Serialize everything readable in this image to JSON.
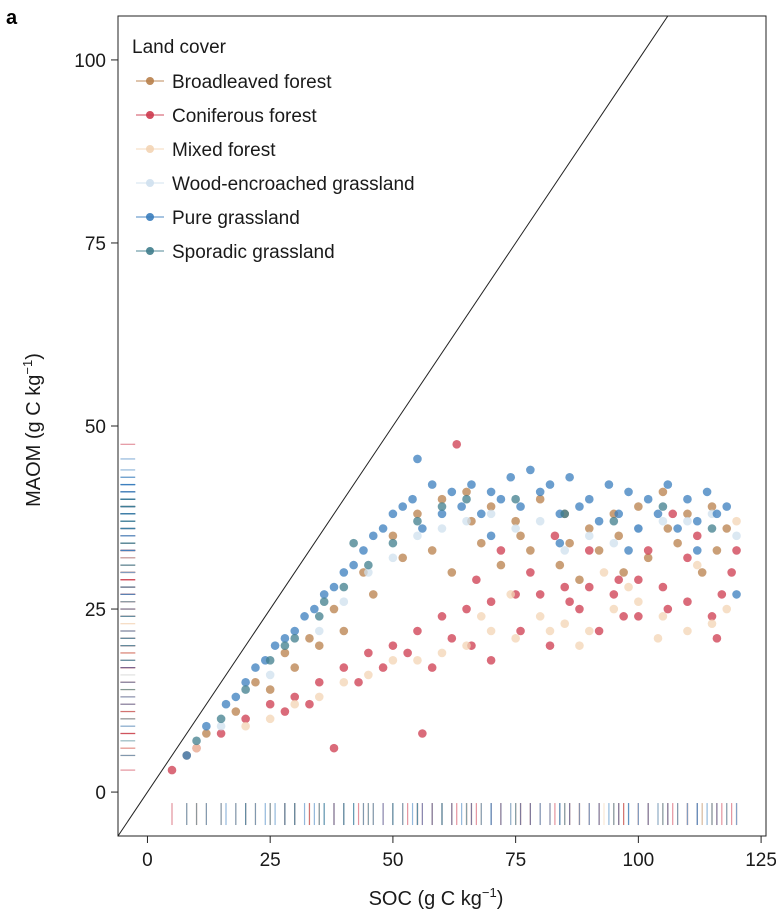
{
  "panel_label": "a",
  "chart_data": {
    "type": "scatter",
    "title": "",
    "xlabel": "SOC (g C kg",
    "xlabel_sup": "−1",
    "xlabel_end": ")",
    "ylabel": "MAOM (g C kg",
    "ylabel_sup": "−1",
    "ylabel_end": ")",
    "xlim": [
      -6,
      126
    ],
    "ylim": [
      -6,
      106
    ],
    "x_ticks": [
      "0",
      "25",
      "50",
      "75",
      "100",
      "125"
    ],
    "y_ticks": [
      "0",
      "25",
      "50",
      "75",
      "100"
    ],
    "grid": false,
    "reference_line": "1:1",
    "marginal_rugs": true,
    "legend": {
      "title": "Land cover",
      "placement": "top-left"
    },
    "series": [
      {
        "name": "Broadleaved forest",
        "color": "#b87f4a",
        "points": [
          [
            8,
            5
          ],
          [
            12,
            8
          ],
          [
            18,
            11
          ],
          [
            22,
            15
          ],
          [
            28,
            19
          ],
          [
            33,
            21
          ],
          [
            38,
            25
          ],
          [
            44,
            30
          ],
          [
            50,
            35
          ],
          [
            55,
            38
          ],
          [
            60,
            40
          ],
          [
            65,
            41
          ],
          [
            70,
            39
          ],
          [
            75,
            37
          ],
          [
            80,
            40
          ],
          [
            85,
            38
          ],
          [
            90,
            36
          ],
          [
            95,
            38
          ],
          [
            100,
            39
          ],
          [
            105,
            41
          ],
          [
            110,
            38
          ],
          [
            115,
            39
          ],
          [
            118,
            36
          ],
          [
            58,
            33
          ],
          [
            62,
            30
          ],
          [
            68,
            34
          ],
          [
            72,
            31
          ],
          [
            78,
            33
          ],
          [
            84,
            31
          ],
          [
            88,
            29
          ],
          [
            92,
            33
          ],
          [
            97,
            30
          ],
          [
            102,
            32
          ],
          [
            108,
            34
          ],
          [
            113,
            30
          ],
          [
            46,
            27
          ],
          [
            40,
            22
          ],
          [
            35,
            20
          ],
          [
            30,
            17
          ],
          [
            25,
            14
          ],
          [
            52,
            32
          ],
          [
            66,
            37
          ],
          [
            76,
            35
          ],
          [
            86,
            34
          ],
          [
            96,
            35
          ],
          [
            106,
            36
          ],
          [
            116,
            33
          ]
        ]
      },
      {
        "name": "Coniferous forest",
        "color": "#cd3a4e",
        "points": [
          [
            5,
            3
          ],
          [
            10,
            6
          ],
          [
            15,
            8
          ],
          [
            20,
            10
          ],
          [
            25,
            12
          ],
          [
            30,
            13
          ],
          [
            35,
            15
          ],
          [
            40,
            17
          ],
          [
            45,
            19
          ],
          [
            50,
            20
          ],
          [
            55,
            22
          ],
          [
            60,
            24
          ],
          [
            65,
            25
          ],
          [
            70,
            26
          ],
          [
            75,
            27
          ],
          [
            80,
            27
          ],
          [
            85,
            28
          ],
          [
            90,
            28
          ],
          [
            95,
            27
          ],
          [
            100,
            29
          ],
          [
            105,
            28
          ],
          [
            110,
            26
          ],
          [
            115,
            24
          ],
          [
            120,
            33
          ],
          [
            38,
            6
          ],
          [
            56,
            8
          ],
          [
            63,
            47.5
          ],
          [
            58,
            17
          ],
          [
            62,
            21
          ],
          [
            67,
            29
          ],
          [
            72,
            33
          ],
          [
            78,
            30
          ],
          [
            83,
            35
          ],
          [
            88,
            25
          ],
          [
            92,
            22
          ],
          [
            97,
            24
          ],
          [
            102,
            33
          ],
          [
            107,
            38
          ],
          [
            112,
            35
          ],
          [
            117,
            27
          ],
          [
            70,
            18
          ],
          [
            76,
            22
          ],
          [
            82,
            20
          ],
          [
            90,
            33
          ],
          [
            100,
            24
          ],
          [
            110,
            32
          ],
          [
            119,
            30
          ],
          [
            28,
            11
          ],
          [
            33,
            12
          ],
          [
            43,
            15
          ],
          [
            48,
            17
          ],
          [
            53,
            19
          ],
          [
            66,
            20
          ],
          [
            86,
            26
          ],
          [
            96,
            29
          ],
          [
            106,
            25
          ],
          [
            116,
            21
          ]
        ]
      },
      {
        "name": "Mixed forest",
        "color": "#f3d4b4",
        "points": [
          [
            10,
            6
          ],
          [
            20,
            9
          ],
          [
            30,
            12
          ],
          [
            40,
            15
          ],
          [
            50,
            18
          ],
          [
            55,
            18
          ],
          [
            60,
            19
          ],
          [
            65,
            20
          ],
          [
            70,
            22
          ],
          [
            75,
            21
          ],
          [
            80,
            24
          ],
          [
            85,
            23
          ],
          [
            90,
            22
          ],
          [
            95,
            25
          ],
          [
            100,
            26
          ],
          [
            105,
            24
          ],
          [
            110,
            22
          ],
          [
            115,
            23
          ],
          [
            120,
            37
          ],
          [
            68,
            24
          ],
          [
            74,
            27
          ],
          [
            82,
            22
          ],
          [
            88,
            20
          ],
          [
            93,
            30
          ],
          [
            98,
            28
          ],
          [
            104,
            21
          ],
          [
            112,
            31
          ],
          [
            118,
            25
          ],
          [
            45,
            16
          ],
          [
            35,
            13
          ],
          [
            25,
            10
          ]
        ]
      },
      {
        "name": "Wood-encroached grassland",
        "color": "#cfe0ee",
        "points": [
          [
            15,
            9
          ],
          [
            25,
            16
          ],
          [
            35,
            22
          ],
          [
            45,
            30
          ],
          [
            55,
            35
          ],
          [
            65,
            37
          ],
          [
            75,
            36
          ],
          [
            85,
            33
          ],
          [
            95,
            34
          ],
          [
            105,
            37
          ],
          [
            115,
            38
          ],
          [
            40,
            26
          ],
          [
            50,
            32
          ],
          [
            60,
            36
          ],
          [
            70,
            38
          ],
          [
            80,
            37
          ],
          [
            90,
            35
          ],
          [
            100,
            36
          ],
          [
            110,
            37
          ],
          [
            120,
            35
          ]
        ]
      },
      {
        "name": "Pure grassland",
        "color": "#3a7dbd",
        "points": [
          [
            8,
            5
          ],
          [
            12,
            9
          ],
          [
            16,
            12
          ],
          [
            20,
            15
          ],
          [
            24,
            18
          ],
          [
            28,
            21
          ],
          [
            32,
            24
          ],
          [
            36,
            27
          ],
          [
            40,
            30
          ],
          [
            44,
            33
          ],
          [
            48,
            36
          ],
          [
            52,
            39
          ],
          [
            55,
            45.5
          ],
          [
            58,
            42
          ],
          [
            62,
            41
          ],
          [
            66,
            42
          ],
          [
            70,
            41
          ],
          [
            74,
            43
          ],
          [
            78,
            44
          ],
          [
            82,
            42
          ],
          [
            86,
            43
          ],
          [
            90,
            40
          ],
          [
            94,
            42
          ],
          [
            98,
            41
          ],
          [
            102,
            40
          ],
          [
            106,
            42
          ],
          [
            110,
            40
          ],
          [
            114,
            41
          ],
          [
            118,
            39
          ],
          [
            120,
            27
          ],
          [
            50,
            38
          ],
          [
            46,
            35
          ],
          [
            42,
            31
          ],
          [
            38,
            28
          ],
          [
            34,
            25
          ],
          [
            30,
            22
          ],
          [
            26,
            20
          ],
          [
            22,
            17
          ],
          [
            18,
            13
          ],
          [
            54,
            40
          ],
          [
            60,
            38
          ],
          [
            64,
            39
          ],
          [
            68,
            38
          ],
          [
            72,
            40
          ],
          [
            76,
            39
          ],
          [
            80,
            41
          ],
          [
            84,
            38
          ],
          [
            88,
            39
          ],
          [
            92,
            37
          ],
          [
            96,
            38
          ],
          [
            100,
            36
          ],
          [
            104,
            38
          ],
          [
            108,
            36
          ],
          [
            112,
            37
          ],
          [
            116,
            38
          ],
          [
            56,
            36
          ],
          [
            70,
            35
          ],
          [
            84,
            34
          ],
          [
            98,
            33
          ],
          [
            112,
            33
          ]
        ]
      },
      {
        "name": "Sporadic grassland",
        "color": "#3f7d8c",
        "points": [
          [
            10,
            7
          ],
          [
            15,
            10
          ],
          [
            20,
            14
          ],
          [
            25,
            18
          ],
          [
            30,
            21
          ],
          [
            35,
            24
          ],
          [
            40,
            28
          ],
          [
            45,
            31
          ],
          [
            50,
            34
          ],
          [
            55,
            37
          ],
          [
            60,
            39
          ],
          [
            65,
            40
          ],
          [
            75,
            40
          ],
          [
            85,
            38
          ],
          [
            95,
            37
          ],
          [
            105,
            39
          ],
          [
            115,
            36
          ],
          [
            42,
            34
          ],
          [
            36,
            26
          ],
          [
            28,
            20
          ]
        ]
      }
    ]
  }
}
